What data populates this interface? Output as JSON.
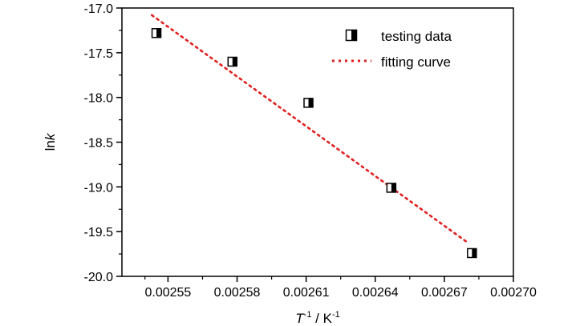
{
  "chart_data": {
    "type": "scatter",
    "xlabel_parts": {
      "var": "T",
      "var_exp": "-1",
      "sep": " / K",
      "unit_exp": "-1"
    },
    "ylabel_parts": {
      "pre": "ln",
      "var": "k"
    },
    "xlim": [
      0.00253,
      0.0027
    ],
    "ylim": [
      -20.0,
      -17.0
    ],
    "xticks": [
      0.00255,
      0.00258,
      0.00261,
      0.00264,
      0.00267,
      0.0027
    ],
    "xtick_labels": [
      "0.00255",
      "0.00258",
      "0.00261",
      "0.00264",
      "0.00267",
      "0.00270"
    ],
    "yticks": [
      -20.0,
      -19.5,
      -19.0,
      -18.5,
      -18.0,
      -17.5,
      -17.0
    ],
    "ytick_labels": [
      "-20.0",
      "-19.5",
      "-19.0",
      "-18.5",
      "-18.0",
      "-17.5",
      "-17.0"
    ],
    "series": [
      {
        "name": "testing data",
        "kind": "points",
        "marker": "half-filled-square",
        "color": "#000000",
        "x": [
          0.002545,
          0.002578,
          0.002611,
          0.002647,
          0.002682
        ],
        "y": [
          -17.28,
          -17.6,
          -18.06,
          -19.01,
          -19.74
        ]
      },
      {
        "name": "fitting curve",
        "kind": "line",
        "style": "dotted",
        "color": "#e02020",
        "x": [
          0.002543,
          0.00268
        ],
        "y": [
          -17.08,
          -19.62
        ]
      }
    ],
    "legend_position": "top-right",
    "grid": false
  }
}
